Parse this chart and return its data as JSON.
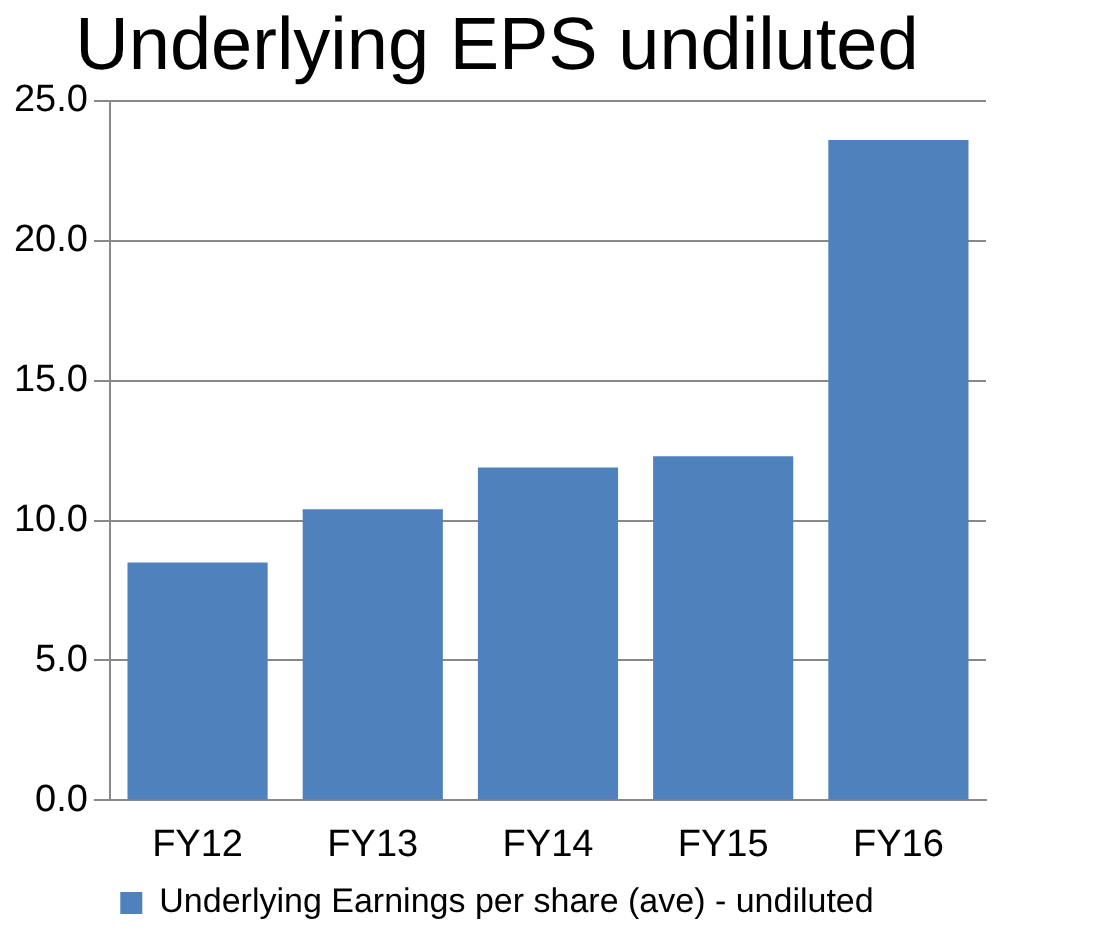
{
  "chart_data": {
    "type": "bar",
    "title": "Underlying EPS undiluted",
    "categories": [
      "FY12",
      "FY13",
      "FY14",
      "FY15",
      "FY16"
    ],
    "series": [
      {
        "name": "Underlying Earnings per share (ave) - undiluted",
        "color": "#4f81bd",
        "values": [
          8.5,
          10.4,
          11.9,
          12.3,
          23.6
        ]
      }
    ],
    "ylim": [
      0,
      25
    ],
    "yticks": [
      {
        "value": 0,
        "label": "0.0"
      },
      {
        "value": 5,
        "label": "5.0"
      },
      {
        "value": 10,
        "label": "10.0"
      },
      {
        "value": 15,
        "label": "15.0"
      },
      {
        "value": 20,
        "label": "20.0"
      },
      {
        "value": 25,
        "label": "25.0"
      }
    ],
    "grid": "y",
    "legend": "bottom"
  }
}
